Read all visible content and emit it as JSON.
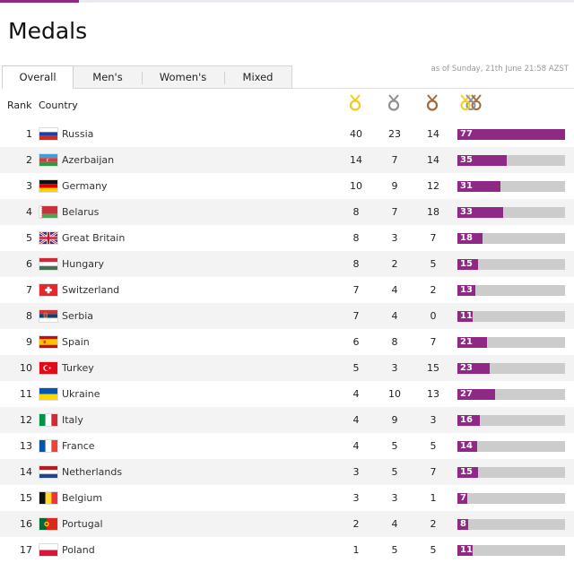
{
  "page": {
    "title": "Medals"
  },
  "tabs": [
    {
      "label": "Overall",
      "active": true
    },
    {
      "label": "Men's",
      "active": false
    },
    {
      "label": "Women's",
      "active": false
    },
    {
      "label": "Mixed",
      "active": false
    }
  ],
  "as_of": "as of Sunday, 21th June 21:58 AZST",
  "columns": {
    "rank": "Rank",
    "country": "Country"
  },
  "medal_icons": {
    "gold": "gold-medal-icon",
    "silver": "silver-medal-icon",
    "bronze": "bronze-medal-icon",
    "total": "total-medals-icon"
  },
  "colors": {
    "accent": "#8e2a86",
    "bar_track": "#cccccc",
    "gold": "#f2cc1c",
    "silver": "#8f8f8f",
    "bronze": "#a06a3a"
  },
  "max_total": 77,
  "rows": [
    {
      "rank": "1",
      "country": "Russia",
      "flag": "russia-flag-icon",
      "gold": "40",
      "silver": "23",
      "bronze": "14",
      "total": "77"
    },
    {
      "rank": "2",
      "country": "Azerbaijan",
      "flag": "azerbaijan-flag-icon",
      "gold": "14",
      "silver": "7",
      "bronze": "14",
      "total": "35"
    },
    {
      "rank": "3",
      "country": "Germany",
      "flag": "germany-flag-icon",
      "gold": "10",
      "silver": "9",
      "bronze": "12",
      "total": "31"
    },
    {
      "rank": "4",
      "country": "Belarus",
      "flag": "belarus-flag-icon",
      "gold": "8",
      "silver": "7",
      "bronze": "18",
      "total": "33"
    },
    {
      "rank": "5",
      "country": "Great Britain",
      "flag": "great-britain-flag-icon",
      "gold": "8",
      "silver": "3",
      "bronze": "7",
      "total": "18"
    },
    {
      "rank": "6",
      "country": "Hungary",
      "flag": "hungary-flag-icon",
      "gold": "8",
      "silver": "2",
      "bronze": "5",
      "total": "15"
    },
    {
      "rank": "7",
      "country": "Switzerland",
      "flag": "switzerland-flag-icon",
      "gold": "7",
      "silver": "4",
      "bronze": "2",
      "total": "13"
    },
    {
      "rank": "8",
      "country": "Serbia",
      "flag": "serbia-flag-icon",
      "gold": "7",
      "silver": "4",
      "bronze": "0",
      "total": "11"
    },
    {
      "rank": "9",
      "country": "Spain",
      "flag": "spain-flag-icon",
      "gold": "6",
      "silver": "8",
      "bronze": "7",
      "total": "21"
    },
    {
      "rank": "10",
      "country": "Turkey",
      "flag": "turkey-flag-icon",
      "gold": "5",
      "silver": "3",
      "bronze": "15",
      "total": "23"
    },
    {
      "rank": "11",
      "country": "Ukraine",
      "flag": "ukraine-flag-icon",
      "gold": "4",
      "silver": "10",
      "bronze": "13",
      "total": "27"
    },
    {
      "rank": "12",
      "country": "Italy",
      "flag": "italy-flag-icon",
      "gold": "4",
      "silver": "9",
      "bronze": "3",
      "total": "16"
    },
    {
      "rank": "13",
      "country": "France",
      "flag": "france-flag-icon",
      "gold": "4",
      "silver": "5",
      "bronze": "5",
      "total": "14"
    },
    {
      "rank": "14",
      "country": "Netherlands",
      "flag": "netherlands-flag-icon",
      "gold": "3",
      "silver": "5",
      "bronze": "7",
      "total": "15"
    },
    {
      "rank": "15",
      "country": "Belgium",
      "flag": "belgium-flag-icon",
      "gold": "3",
      "silver": "3",
      "bronze": "1",
      "total": "7"
    },
    {
      "rank": "16",
      "country": "Portugal",
      "flag": "portugal-flag-icon",
      "gold": "2",
      "silver": "4",
      "bronze": "2",
      "total": "8"
    },
    {
      "rank": "17",
      "country": "Poland",
      "flag": "poland-flag-icon",
      "gold": "1",
      "silver": "5",
      "bronze": "5",
      "total": "11"
    }
  ]
}
